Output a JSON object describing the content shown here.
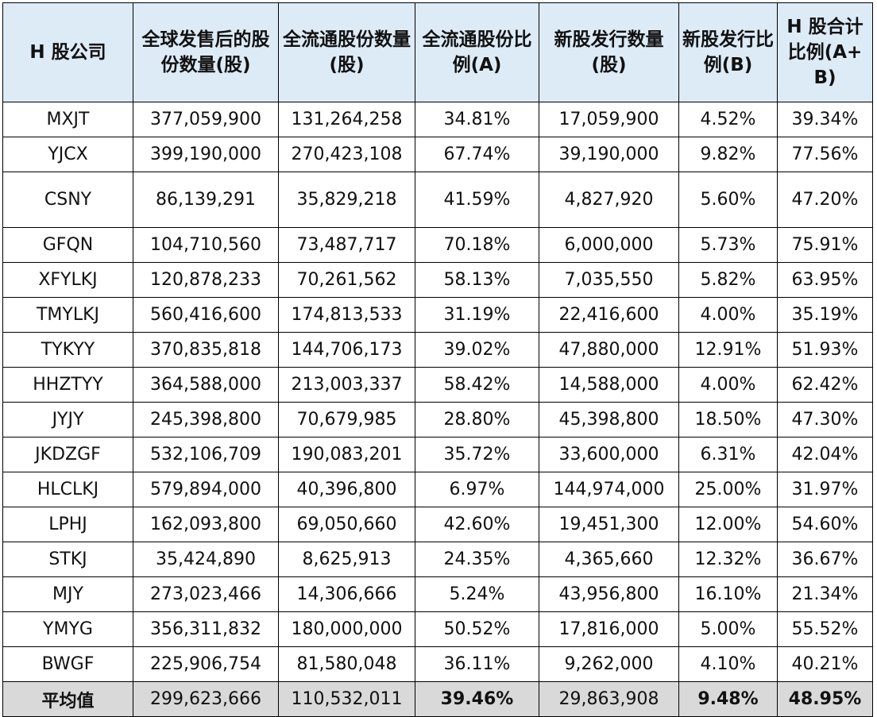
{
  "table": {
    "headers": [
      "H 股公司",
      "全球发售后的股份数量(股)",
      "全流通股份数量(股)",
      "全流通股份比例(A)",
      "新股发行数量(股)",
      "新股发行比例(B)",
      "H 股合计比例(A+B)"
    ],
    "rows": [
      [
        "MXJT",
        "377,059,900",
        "131,264,258",
        "34.81%",
        "17,059,900",
        "4.52%",
        "39.34%"
      ],
      [
        "YJCX",
        "399,190,000",
        "270,423,108",
        "67.74%",
        "39,190,000",
        "9.82%",
        "77.56%"
      ],
      [
        "CSNY",
        "86,139,291",
        "35,829,218",
        "41.59%",
        "4,827,920",
        "5.60%",
        "47.20%"
      ],
      [
        "GFQN",
        "104,710,560",
        "73,487,717",
        "70.18%",
        "6,000,000",
        "5.73%",
        "75.91%"
      ],
      [
        "XFYLKJ",
        "120,878,233",
        "70,261,562",
        "58.13%",
        "7,035,550",
        "5.82%",
        "63.95%"
      ],
      [
        "TMYLKJ",
        "560,416,600",
        "174,813,533",
        "31.19%",
        "22,416,600",
        "4.00%",
        "35.19%"
      ],
      [
        "TYKYY",
        "370,835,818",
        "144,706,173",
        "39.02%",
        "47,880,000",
        "12.91%",
        "51.93%"
      ],
      [
        "HHZTYY",
        "364,588,000",
        "213,003,337",
        "58.42%",
        "14,588,000",
        "4.00%",
        "62.42%"
      ],
      [
        "JYJY",
        "245,398,800",
        "70,679,985",
        "28.80%",
        "45,398,800",
        "18.50%",
        "47.30%"
      ],
      [
        "JKDZGF",
        "532,106,709",
        "190,083,201",
        "35.72%",
        "33,600,000",
        "6.31%",
        "42.04%"
      ],
      [
        "HLCLKJ",
        "579,894,000",
        "40,396,800",
        "6.97%",
        "144,974,000",
        "25.00%",
        "31.97%"
      ],
      [
        "LPHJ",
        "162,093,800",
        "69,050,660",
        "42.60%",
        "19,451,300",
        "12.00%",
        "54.60%"
      ],
      [
        "STKJ",
        "35,424,890",
        "8,625,913",
        "24.35%",
        "4,365,660",
        "12.32%",
        "36.67%"
      ],
      [
        "MJY",
        "273,023,466",
        "14,306,666",
        "5.24%",
        "43,956,800",
        "16.10%",
        "21.34%"
      ],
      [
        "YMYG",
        "356,311,832",
        "180,000,000",
        "50.52%",
        "17,816,000",
        "5.00%",
        "55.52%"
      ],
      [
        "BWGF",
        "225,906,754",
        "81,580,048",
        "36.11%",
        "9,262,000",
        "4.10%",
        "40.21%"
      ]
    ],
    "average_row": [
      "平均值",
      "299,623,666",
      "110,532,011",
      "39.46%",
      "29,863,908",
      "9.48%",
      "48.95%"
    ]
  },
  "colors": {
    "header_background": "#ddebf7",
    "average_row_background": "#d9d9d9",
    "border": "#000000"
  }
}
